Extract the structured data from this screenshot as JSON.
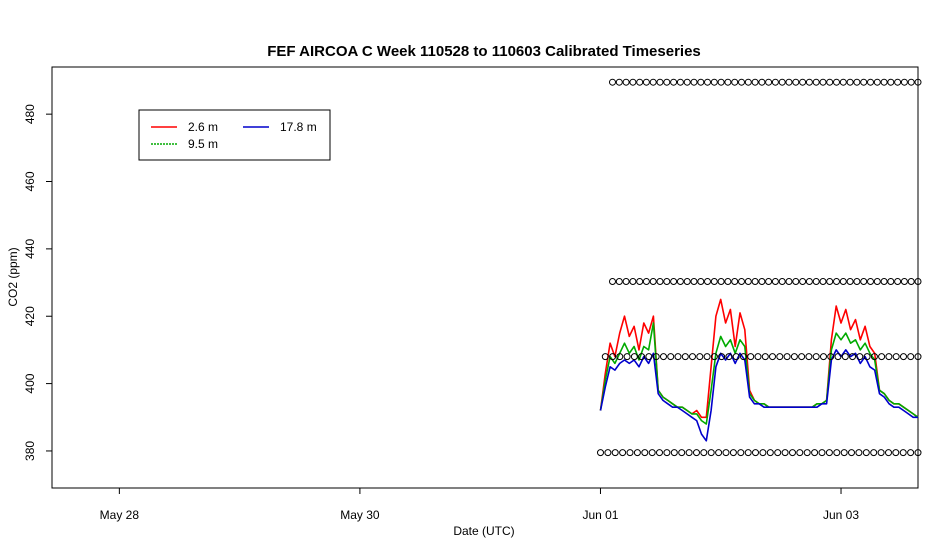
{
  "chart_data": {
    "type": "line",
    "title": "FEF AIRCOA C  Week 110528 to 110603  Calibrated Timeseries",
    "xlabel": "Date (UTC)",
    "ylabel": "CO2 (ppm)",
    "x_unit": "day",
    "xlim": [
      -0.28,
      3.32
    ],
    "ylim": [
      369,
      494
    ],
    "x_ticks": [
      {
        "value": 0,
        "label": "May 28"
      },
      {
        "value": 1,
        "label": "May 30"
      },
      {
        "value": 2,
        "label": "Jun 01"
      },
      {
        "value": 3,
        "label": "Jun 03"
      }
    ],
    "y_ticks": [
      380,
      400,
      420,
      440,
      460,
      480
    ],
    "legend_position": "top-left",
    "series": [
      {
        "name": "2.6 m",
        "color": "#ff0000",
        "x": [
          2.0,
          2.02,
          2.04,
          2.06,
          2.08,
          2.1,
          2.12,
          2.14,
          2.16,
          2.18,
          2.2,
          2.22,
          2.24,
          2.26,
          2.28,
          2.3,
          2.32,
          2.34,
          2.36,
          2.38,
          2.4,
          2.42,
          2.44,
          2.46,
          2.48,
          2.5,
          2.52,
          2.54,
          2.56,
          2.58,
          2.6,
          2.62,
          2.64,
          2.66,
          2.68,
          2.7,
          2.72,
          2.74,
          2.76,
          2.78,
          2.8,
          2.82,
          2.84,
          2.86,
          2.88,
          2.9,
          2.92,
          2.94,
          2.96,
          2.98,
          3.0,
          3.02,
          3.04,
          3.06,
          3.08,
          3.1,
          3.12,
          3.14,
          3.16,
          3.18,
          3.2,
          3.22,
          3.24,
          3.26,
          3.28,
          3.3,
          3.32
        ],
        "y": [
          392,
          403,
          412,
          408,
          415,
          420,
          414,
          417,
          410,
          418,
          415,
          420,
          398,
          396,
          395,
          394,
          393,
          393,
          392,
          391,
          392,
          390,
          390,
          405,
          420,
          425,
          418,
          422,
          411,
          421,
          416,
          398,
          395,
          394,
          394,
          393,
          393,
          393,
          393,
          393,
          393,
          393,
          393,
          393,
          393,
          394,
          394,
          395,
          413,
          423,
          418,
          422,
          416,
          419,
          413,
          417,
          411,
          409,
          398,
          397,
          395,
          394,
          394,
          393,
          392,
          391,
          390
        ]
      },
      {
        "name": "9.5 m",
        "color": "#00aa00",
        "x": [
          2.0,
          2.02,
          2.04,
          2.06,
          2.08,
          2.1,
          2.12,
          2.14,
          2.16,
          2.18,
          2.2,
          2.22,
          2.24,
          2.26,
          2.28,
          2.3,
          2.32,
          2.34,
          2.36,
          2.38,
          2.4,
          2.42,
          2.44,
          2.46,
          2.48,
          2.5,
          2.52,
          2.54,
          2.56,
          2.58,
          2.6,
          2.62,
          2.64,
          2.66,
          2.68,
          2.7,
          2.72,
          2.74,
          2.76,
          2.78,
          2.8,
          2.82,
          2.84,
          2.86,
          2.88,
          2.9,
          2.92,
          2.94,
          2.96,
          2.98,
          3.0,
          3.02,
          3.04,
          3.06,
          3.08,
          3.1,
          3.12,
          3.14,
          3.16,
          3.18,
          3.2,
          3.22,
          3.24,
          3.26,
          3.28,
          3.3,
          3.32
        ],
        "y": [
          392,
          401,
          408,
          406,
          409,
          412,
          409,
          411,
          407,
          411,
          410,
          418,
          398,
          396,
          395,
          394,
          393,
          393,
          392,
          391,
          391,
          389,
          388,
          398,
          409,
          414,
          411,
          413,
          409,
          413,
          411,
          397,
          395,
          394,
          394,
          393,
          393,
          393,
          393,
          393,
          393,
          393,
          393,
          393,
          393,
          394,
          394,
          395,
          410,
          415,
          413,
          415,
          412,
          413,
          410,
          412,
          409,
          407,
          398,
          397,
          395,
          394,
          394,
          393,
          392,
          391,
          390
        ]
      },
      {
        "name": "17.8 m",
        "color": "#0000cc",
        "x": [
          2.0,
          2.02,
          2.04,
          2.06,
          2.08,
          2.1,
          2.12,
          2.14,
          2.16,
          2.18,
          2.2,
          2.22,
          2.24,
          2.26,
          2.28,
          2.3,
          2.32,
          2.34,
          2.36,
          2.38,
          2.4,
          2.42,
          2.44,
          2.46,
          2.48,
          2.5,
          2.52,
          2.54,
          2.56,
          2.58,
          2.6,
          2.62,
          2.64,
          2.66,
          2.68,
          2.7,
          2.72,
          2.74,
          2.76,
          2.78,
          2.8,
          2.82,
          2.84,
          2.86,
          2.88,
          2.9,
          2.92,
          2.94,
          2.96,
          2.98,
          3.0,
          3.02,
          3.04,
          3.06,
          3.08,
          3.1,
          3.12,
          3.14,
          3.16,
          3.18,
          3.2,
          3.22,
          3.24,
          3.26,
          3.28,
          3.3,
          3.32
        ],
        "y": [
          392,
          399,
          405,
          404,
          406,
          407,
          406,
          407,
          405,
          408,
          406,
          409,
          397,
          395,
          394,
          393,
          393,
          392,
          391,
          390,
          389,
          385,
          383,
          392,
          405,
          409,
          407,
          409,
          406,
          409,
          407,
          396,
          394,
          394,
          393,
          393,
          393,
          393,
          393,
          393,
          393,
          393,
          393,
          393,
          393,
          393,
          394,
          394,
          407,
          410,
          408,
          410,
          408,
          409,
          406,
          408,
          405,
          404,
          397,
          396,
          394,
          393,
          393,
          392,
          391,
          390,
          390
        ]
      }
    ],
    "markers": {
      "symbol": "circle",
      "levels": [
        {
          "y": 489.5,
          "x_start": 2.05,
          "x_end": 3.32,
          "count": 46
        },
        {
          "y": 430.3,
          "x_start": 2.05,
          "x_end": 3.32,
          "count": 46
        },
        {
          "y": 408,
          "x_start": 2.02,
          "x_end": 3.32,
          "count": 44
        },
        {
          "y": 379.5,
          "x_start": 2.0,
          "x_end": 3.32,
          "count": 44
        }
      ]
    }
  }
}
